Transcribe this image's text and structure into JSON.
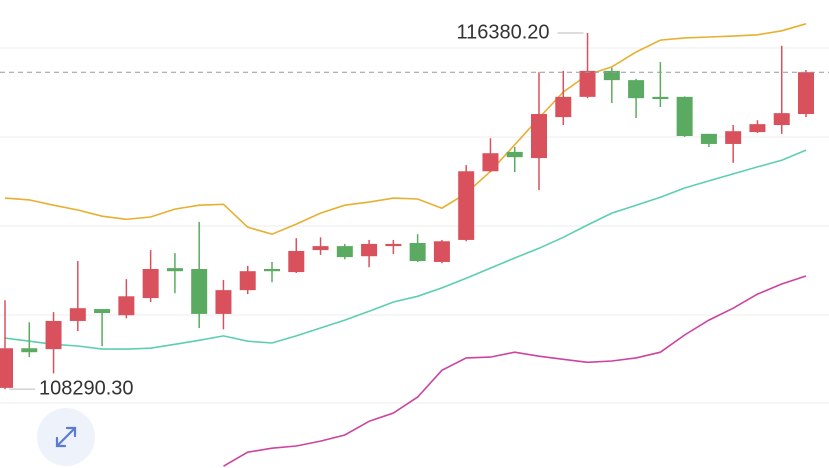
{
  "chart_data": {
    "type": "candlestick",
    "ylim": [
      106500,
      117130
    ],
    "up_color": "#d9515c",
    "down_color": "#5aab61",
    "last_price_line": true,
    "candles": [
      {
        "open": 108320,
        "high": 110310,
        "low": 108290.3,
        "close": 109220
      },
      {
        "open": 109220,
        "high": 109810,
        "low": 109020,
        "close": 109130
      },
      {
        "open": 109200,
        "high": 110040,
        "low": 108650,
        "close": 109840
      },
      {
        "open": 109840,
        "high": 111200,
        "low": 109610,
        "close": 110130
      },
      {
        "open": 110110,
        "high": 110110,
        "low": 109270,
        "close": 110020
      },
      {
        "open": 109970,
        "high": 110790,
        "low": 109900,
        "close": 110400
      },
      {
        "open": 110360,
        "high": 111450,
        "low": 110270,
        "close": 111020
      },
      {
        "open": 111040,
        "high": 111380,
        "low": 110470,
        "close": 110970
      },
      {
        "open": 111020,
        "high": 112090,
        "low": 109680,
        "close": 110000
      },
      {
        "open": 110000,
        "high": 110770,
        "low": 109650,
        "close": 110540
      },
      {
        "open": 110540,
        "high": 111090,
        "low": 110450,
        "close": 110970
      },
      {
        "open": 111020,
        "high": 111180,
        "low": 110720,
        "close": 110970
      },
      {
        "open": 110950,
        "high": 111720,
        "low": 110930,
        "close": 111430
      },
      {
        "open": 111450,
        "high": 111740,
        "low": 111340,
        "close": 111540
      },
      {
        "open": 111540,
        "high": 111590,
        "low": 111240,
        "close": 111290
      },
      {
        "open": 111310,
        "high": 111680,
        "low": 111060,
        "close": 111590
      },
      {
        "open": 111540,
        "high": 111680,
        "low": 111360,
        "close": 111590
      },
      {
        "open": 111610,
        "high": 111810,
        "low": 111180,
        "close": 111200
      },
      {
        "open": 111180,
        "high": 111680,
        "low": 111150,
        "close": 111650
      },
      {
        "open": 111680,
        "high": 113380,
        "low": 111650,
        "close": 113240
      },
      {
        "open": 113240,
        "high": 113990,
        "low": 113220,
        "close": 113650
      },
      {
        "open": 113680,
        "high": 113790,
        "low": 113220,
        "close": 113560
      },
      {
        "open": 113540,
        "high": 115490,
        "low": 112810,
        "close": 114540
      },
      {
        "open": 114470,
        "high": 115520,
        "low": 114290,
        "close": 114930
      },
      {
        "open": 114930,
        "high": 116380.2,
        "low": 114900,
        "close": 115520
      },
      {
        "open": 115520,
        "high": 115590,
        "low": 114790,
        "close": 115310
      },
      {
        "open": 115310,
        "high": 115340,
        "low": 114450,
        "close": 114900
      },
      {
        "open": 114930,
        "high": 115720,
        "low": 114700,
        "close": 114880
      },
      {
        "open": 114930,
        "high": 114940,
        "low": 114020,
        "close": 114040
      },
      {
        "open": 114090,
        "high": 114090,
        "low": 113790,
        "close": 113860
      },
      {
        "open": 113860,
        "high": 114290,
        "low": 113430,
        "close": 114150
      },
      {
        "open": 114130,
        "high": 114400,
        "low": 114110,
        "close": 114310
      },
      {
        "open": 114290,
        "high": 116090,
        "low": 114090,
        "close": 114560
      },
      {
        "open": 114540,
        "high": 115540,
        "low": 114470,
        "close": 115490
      }
    ],
    "series": [
      {
        "color": "#e8b030",
        "values": [
          112630,
          112590,
          112470,
          112360,
          112220,
          112150,
          112200,
          112380,
          112470,
          112490,
          111970,
          111810,
          112040,
          112290,
          112470,
          112540,
          112630,
          112610,
          112400,
          112740,
          113240,
          113840,
          114450,
          115040,
          115430,
          115610,
          115950,
          116220,
          116270,
          116290,
          116310,
          116340,
          116430,
          116590
        ]
      },
      {
        "color": "#5ccfb0",
        "values": [
          109450,
          109380,
          109310,
          109270,
          109200,
          109200,
          109220,
          109310,
          109400,
          109500,
          109380,
          109340,
          109500,
          109680,
          109860,
          110060,
          110270,
          110400,
          110590,
          110810,
          111040,
          111270,
          111490,
          111740,
          112020,
          112290,
          112470,
          112650,
          112860,
          113020,
          113180,
          113340,
          113490,
          113720
        ]
      },
      {
        "color": "#cc44a0",
        "values": [
          null,
          null,
          null,
          null,
          null,
          null,
          null,
          null,
          null,
          106540,
          106860,
          106950,
          107000,
          107110,
          107250,
          107560,
          107750,
          108110,
          108720,
          109000,
          109020,
          109130,
          109040,
          108970,
          108900,
          108930,
          109000,
          109130,
          109520,
          109860,
          110130,
          110450,
          110680,
          110860
        ]
      }
    ],
    "annotations": [
      {
        "value": 116380.2,
        "label": "116380.20",
        "index": 24,
        "side": "left"
      },
      {
        "value": 108290.3,
        "label": "108290.30",
        "index": 0,
        "side": "right"
      }
    ]
  }
}
